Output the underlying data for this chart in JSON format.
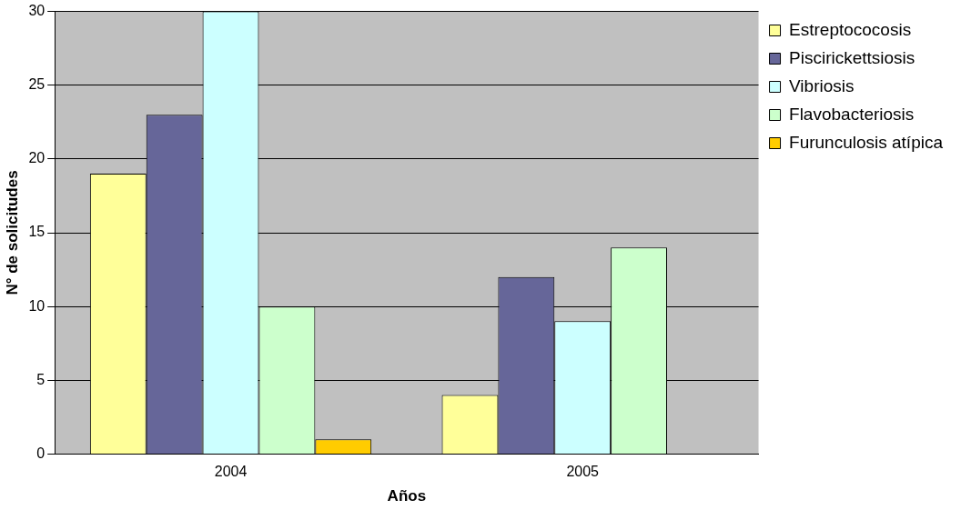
{
  "chart_data": {
    "type": "bar",
    "xlabel": "Años",
    "ylabel": "N° de solicitudes",
    "categories": [
      "2004",
      "2005"
    ],
    "series": [
      {
        "name": "Estreptococosis",
        "color": "#ffff99",
        "values": [
          19,
          4
        ]
      },
      {
        "name": "Piscirickettsiosis",
        "color": "#666699",
        "values": [
          23,
          12
        ]
      },
      {
        "name": "Vibriosis",
        "color": "#ccffff",
        "values": [
          30,
          9
        ]
      },
      {
        "name": "Flavobacteriosis",
        "color": "#ccffcc",
        "values": [
          10,
          14
        ]
      },
      {
        "name": "Furunculosis atípica",
        "color": "#ffcc00",
        "values": [
          1,
          0
        ]
      }
    ],
    "ylim": [
      0,
      30
    ],
    "yticks": [
      0,
      5,
      10,
      15,
      20,
      25,
      30
    ],
    "grid": "y",
    "legend": "top right"
  }
}
